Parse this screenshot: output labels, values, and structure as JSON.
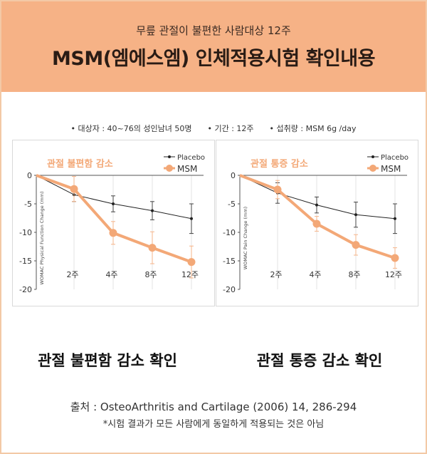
{
  "header": {
    "subtitle": "무릎 관절이 불편한 사람대상 12주",
    "title": "MSM(엠에스엠) 인체적용시험 확인내용"
  },
  "info": [
    "대상자 : 40~76의 성인남녀 50명",
    "기간 : 12주",
    "섭취량 : MSM 6g /day"
  ],
  "captions": [
    "관절 불편함 감소 확인",
    "관절 통증 감소 확인"
  ],
  "footer": {
    "source": "출처 : OsteoArthritis and Cartilage (2006) 14, 286-294",
    "note": "*시험 결과가 모든 사람에게 동일하게 적용되는 것은 아님"
  },
  "colors": {
    "header_bg": "#f6b286",
    "msm": "#f3a877",
    "placebo": "#222222",
    "title_in_chart": "#f3a877"
  },
  "chart_data": [
    {
      "type": "line",
      "title": "관절 불편함 감소",
      "ylabel": "WOMAC Physical Function Change (mm)",
      "categories": [
        "0",
        "2주",
        "4주",
        "8주",
        "12주"
      ],
      "x_tick_labels": [
        "2주",
        "4주",
        "8주",
        "12주"
      ],
      "ylim": [
        -20,
        0
      ],
      "y_ticks": [
        0,
        -5,
        -10,
        -15,
        -20
      ],
      "legend": "top-right",
      "series": [
        {
          "name": "Placebo",
          "values": [
            0,
            -3.4,
            -5.0,
            -6.2,
            -7.6
          ],
          "error": [
            0,
            1.2,
            1.4,
            1.6,
            2.6
          ]
        },
        {
          "name": "MSM",
          "values": [
            0,
            -2.4,
            -10.1,
            -12.7,
            -15.2
          ],
          "error": [
            0,
            2.2,
            2.0,
            2.8,
            2.8
          ]
        }
      ]
    },
    {
      "type": "line",
      "title": "관절 통증 감소",
      "ylabel": "WOMAC Pain Change (mm)",
      "categories": [
        "0",
        "2주",
        "4주",
        "8주",
        "12주"
      ],
      "x_tick_labels": [
        "2주",
        "4주",
        "8주",
        "12주"
      ],
      "ylim": [
        -20,
        0
      ],
      "y_ticks": [
        0,
        -5,
        -10,
        -15,
        -20
      ],
      "legend": "top-right",
      "series": [
        {
          "name": "Placebo",
          "values": [
            0,
            -3.1,
            -5.2,
            -6.9,
            -7.6
          ],
          "error": [
            0,
            1.8,
            1.4,
            2.2,
            2.6
          ]
        },
        {
          "name": "MSM",
          "values": [
            0,
            -2.5,
            -8.5,
            -12.2,
            -14.5
          ],
          "error": [
            0,
            1.6,
            1.3,
            1.8,
            1.8
          ]
        }
      ]
    }
  ]
}
